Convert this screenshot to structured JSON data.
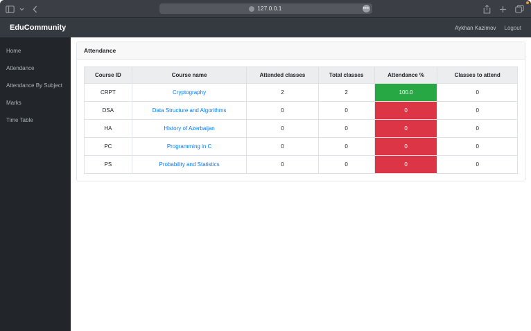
{
  "browser": {
    "url": "127.0.0.1",
    "ellipsis_label": "•••",
    "notification_dot_color": "#e8973a"
  },
  "navbar": {
    "brand": "EduCommunity",
    "user": "Aykhan Kazimov",
    "logout_label": "Logout"
  },
  "sidebar": {
    "items": [
      {
        "id": "home",
        "label": "Home"
      },
      {
        "id": "attendance",
        "label": "Attendance"
      },
      {
        "id": "attendance-by-subject",
        "label": "Attendance By Subject"
      },
      {
        "id": "marks",
        "label": "Marks"
      },
      {
        "id": "time-table",
        "label": "Time Table"
      }
    ]
  },
  "card": {
    "title": "Attendance"
  },
  "table": {
    "columns": [
      "Course ID",
      "Course name",
      "Attended classes",
      "Total classes",
      "Attendance %",
      "Classes to attend"
    ],
    "rows": [
      {
        "id": "CRPT",
        "name": "Cryptography",
        "attended": "2",
        "total": "2",
        "pct": "100.0",
        "pct_color": "#28a745",
        "to_attend": "0"
      },
      {
        "id": "DSA",
        "name": "Data Structure and Algorithms",
        "attended": "0",
        "total": "0",
        "pct": "0",
        "pct_color": "#dc3545",
        "to_attend": "0"
      },
      {
        "id": "HA",
        "name": "History of Azerbaijan",
        "attended": "0",
        "total": "0",
        "pct": "0",
        "pct_color": "#dc3545",
        "to_attend": "0"
      },
      {
        "id": "PC",
        "name": "Programming in C",
        "attended": "0",
        "total": "0",
        "pct": "0",
        "pct_color": "#dc3545",
        "to_attend": "0"
      },
      {
        "id": "PS",
        "name": "Probability and Statistics",
        "attended": "0",
        "total": "0",
        "pct": "0",
        "pct_color": "#dc3545",
        "to_attend": "0"
      }
    ]
  },
  "colors": {
    "success": "#28a745",
    "danger": "#dc3545",
    "link": "#007bff",
    "navbar_bg": "#343a40",
    "sidebar_bg": "#22262a"
  }
}
